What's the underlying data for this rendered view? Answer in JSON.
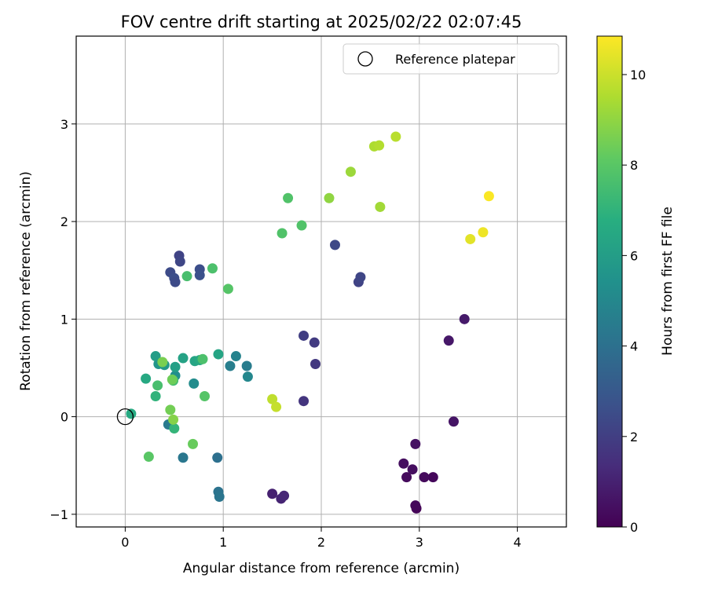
{
  "chart_data": {
    "type": "scatter",
    "title": "FOV centre drift starting at 2025/02/22 02:07:45",
    "xlabel": "Angular distance from reference (arcmin)",
    "ylabel": "Rotation from reference (arcmin)",
    "xlim": [
      -0.5,
      4.5
    ],
    "ylim": [
      -1.13,
      3.9
    ],
    "xticks": [
      "0",
      "1",
      "2",
      "3",
      "4"
    ],
    "yticks": [
      "−1",
      "0",
      "1",
      "2",
      "3"
    ],
    "grid": true,
    "legend": {
      "placement": "top-right",
      "entries": [
        "Reference platepar"
      ]
    },
    "reference_point": {
      "x": 0,
      "y": 0
    },
    "colorbar": {
      "label": "Hours from first FF file",
      "range": [
        0,
        10.85
      ],
      "ticks": [
        "0",
        "2",
        "4",
        "6",
        "8",
        "10"
      ],
      "colormap": "viridis"
    },
    "points": [
      {
        "x": 2.97,
        "y": -0.94,
        "c": 0.1
      },
      {
        "x": 2.96,
        "y": -0.91,
        "c": 0.2
      },
      {
        "x": 3.14,
        "y": -0.62,
        "c": 0.2
      },
      {
        "x": 3.05,
        "y": -0.62,
        "c": 0.3
      },
      {
        "x": 2.87,
        "y": -0.62,
        "c": 0.3
      },
      {
        "x": 2.93,
        "y": -0.54,
        "c": 0.4
      },
      {
        "x": 2.84,
        "y": -0.48,
        "c": 0.4
      },
      {
        "x": 2.96,
        "y": -0.28,
        "c": 0.5
      },
      {
        "x": 3.35,
        "y": -0.05,
        "c": 0.6
      },
      {
        "x": 3.3,
        "y": 0.78,
        "c": 0.7
      },
      {
        "x": 3.46,
        "y": 1.0,
        "c": 0.8
      },
      {
        "x": 1.5,
        "y": -0.79,
        "c": 1.0
      },
      {
        "x": 1.59,
        "y": -0.84,
        "c": 1.1
      },
      {
        "x": 1.62,
        "y": -0.81,
        "c": 1.2
      },
      {
        "x": 1.82,
        "y": 0.16,
        "c": 1.7
      },
      {
        "x": 1.94,
        "y": 0.54,
        "c": 1.8
      },
      {
        "x": 1.93,
        "y": 0.76,
        "c": 1.9
      },
      {
        "x": 1.82,
        "y": 0.83,
        "c": 2.0
      },
      {
        "x": 2.38,
        "y": 1.38,
        "c": 2.2
      },
      {
        "x": 2.4,
        "y": 1.43,
        "c": 2.3
      },
      {
        "x": 2.14,
        "y": 1.76,
        "c": 2.4
      },
      {
        "x": 0.55,
        "y": 1.65,
        "c": 2.2
      },
      {
        "x": 0.56,
        "y": 1.59,
        "c": 2.3
      },
      {
        "x": 0.46,
        "y": 1.48,
        "c": 2.5
      },
      {
        "x": 0.5,
        "y": 1.42,
        "c": 2.6
      },
      {
        "x": 0.51,
        "y": 1.38,
        "c": 2.5
      },
      {
        "x": 0.76,
        "y": 1.51,
        "c": 2.6
      },
      {
        "x": 0.76,
        "y": 1.45,
        "c": 2.7
      },
      {
        "x": 0.94,
        "y": -0.42,
        "c": 4.0
      },
      {
        "x": 0.95,
        "y": -0.77,
        "c": 4.1
      },
      {
        "x": 0.96,
        "y": -0.82,
        "c": 4.2
      },
      {
        "x": 0.59,
        "y": -0.42,
        "c": 4.3
      },
      {
        "x": 0.44,
        "y": -0.08,
        "c": 4.4
      },
      {
        "x": 1.24,
        "y": 0.52,
        "c": 4.5
      },
      {
        "x": 1.07,
        "y": 0.52,
        "c": 4.6
      },
      {
        "x": 1.13,
        "y": 0.62,
        "c": 4.8
      },
      {
        "x": 1.25,
        "y": 0.41,
        "c": 5.0
      },
      {
        "x": 0.7,
        "y": 0.34,
        "c": 5.2
      },
      {
        "x": 0.51,
        "y": 0.42,
        "c": 5.3
      },
      {
        "x": 0.34,
        "y": 0.54,
        "c": 5.6
      },
      {
        "x": 0.38,
        "y": 0.55,
        "c": 5.7
      },
      {
        "x": 0.4,
        "y": 0.53,
        "c": 5.8
      },
      {
        "x": 0.31,
        "y": 0.62,
        "c": 6.0
      },
      {
        "x": 0.51,
        "y": 0.51,
        "c": 6.1
      },
      {
        "x": 0.59,
        "y": 0.6,
        "c": 6.2
      },
      {
        "x": 0.71,
        "y": 0.57,
        "c": 6.3
      },
      {
        "x": 0.95,
        "y": 0.64,
        "c": 6.3
      },
      {
        "x": 0.21,
        "y": 0.39,
        "c": 6.5
      },
      {
        "x": 0.76,
        "y": 0.58,
        "c": 6.5
      },
      {
        "x": 0.06,
        "y": 0.03,
        "c": 6.6
      },
      {
        "x": 0.31,
        "y": 0.21,
        "c": 7.0
      },
      {
        "x": 0.49,
        "y": 0.37,
        "c": 7.4
      },
      {
        "x": 0.5,
        "y": -0.12,
        "c": 7.1
      },
      {
        "x": 0.63,
        "y": 1.44,
        "c": 7.6
      },
      {
        "x": 0.79,
        "y": 0.59,
        "c": 7.7
      },
      {
        "x": 0.89,
        "y": 1.52,
        "c": 7.7
      },
      {
        "x": 1.66,
        "y": 2.24,
        "c": 7.8
      },
      {
        "x": 1.6,
        "y": 1.88,
        "c": 7.8
      },
      {
        "x": 1.8,
        "y": 1.96,
        "c": 7.8
      },
      {
        "x": 0.81,
        "y": 0.21,
        "c": 7.9
      },
      {
        "x": 1.05,
        "y": 1.31,
        "c": 7.9
      },
      {
        "x": 0.33,
        "y": 0.32,
        "c": 7.6
      },
      {
        "x": 0.24,
        "y": -0.41,
        "c": 8.0
      },
      {
        "x": 0.69,
        "y": -0.28,
        "c": 8.3
      },
      {
        "x": 0.46,
        "y": 0.07,
        "c": 8.5
      },
      {
        "x": 0.48,
        "y": 0.38,
        "c": 8.4
      },
      {
        "x": 0.38,
        "y": 0.56,
        "c": 8.6
      },
      {
        "x": 0.49,
        "y": -0.03,
        "c": 8.8
      },
      {
        "x": 2.08,
        "y": 2.24,
        "c": 9.0
      },
      {
        "x": 2.3,
        "y": 2.51,
        "c": 9.2
      },
      {
        "x": 2.6,
        "y": 2.15,
        "c": 9.3
      },
      {
        "x": 2.54,
        "y": 2.77,
        "c": 9.5
      },
      {
        "x": 2.59,
        "y": 2.78,
        "c": 9.6
      },
      {
        "x": 2.76,
        "y": 2.87,
        "c": 9.7
      },
      {
        "x": 1.5,
        "y": 0.18,
        "c": 9.8
      },
      {
        "x": 1.54,
        "y": 0.1,
        "c": 9.9
      },
      {
        "x": 3.52,
        "y": 1.82,
        "c": 10.4
      },
      {
        "x": 3.65,
        "y": 1.89,
        "c": 10.6
      },
      {
        "x": 3.71,
        "y": 2.26,
        "c": 10.8
      }
    ]
  }
}
